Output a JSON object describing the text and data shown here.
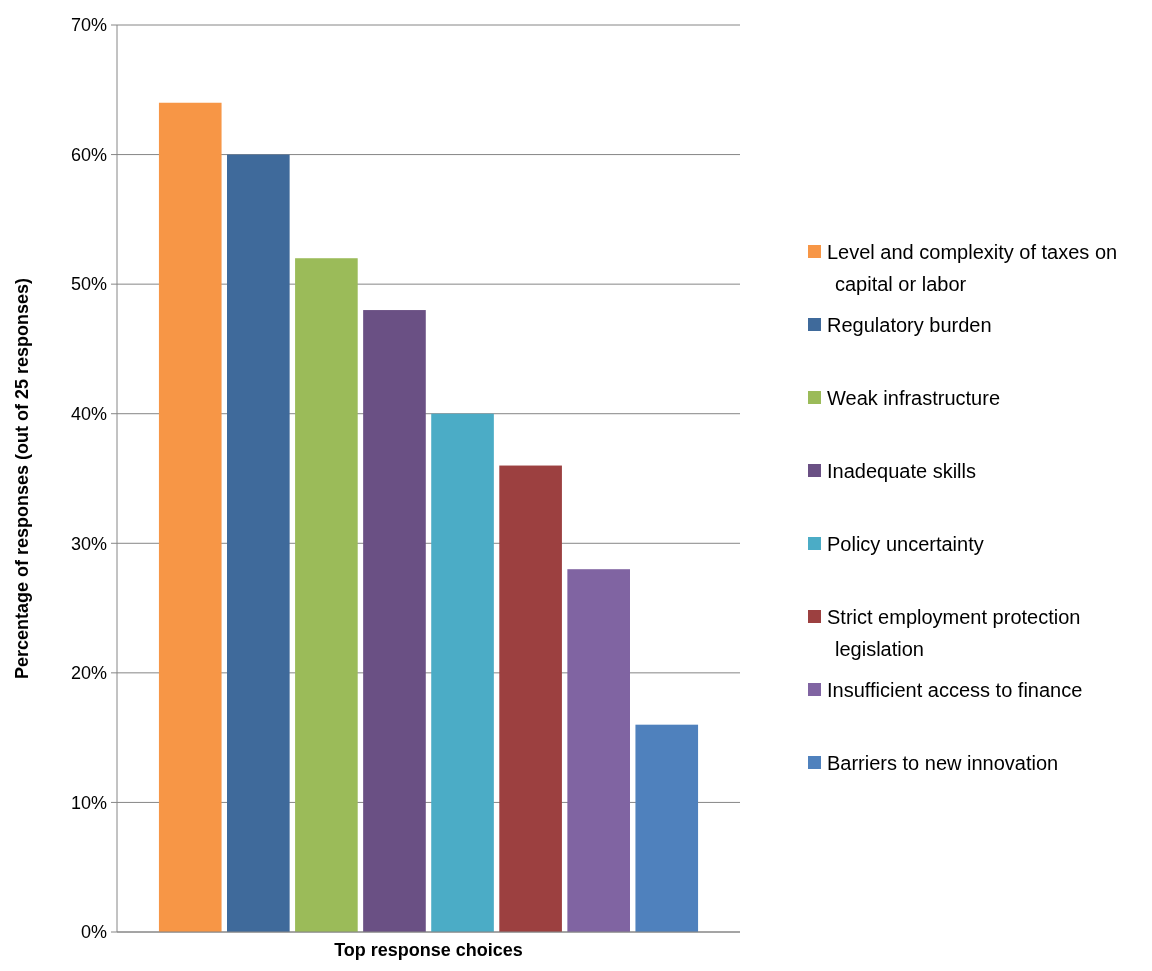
{
  "chart_data": {
    "type": "bar",
    "xlabel": "Top response choices",
    "ylabel": "Percentage of responses (out of 25 responses)",
    "categories": [
      null
    ],
    "series": [
      {
        "name": "Level and complexity of taxes on capital or labor",
        "color": "#f79646",
        "values": [
          64
        ]
      },
      {
        "name": "Regulatory burden",
        "color": "#3f6a9b",
        "values": [
          60
        ]
      },
      {
        "name": "Weak infrastructure",
        "color": "#9bbb59",
        "values": [
          52
        ]
      },
      {
        "name": "Inadequate skills",
        "color": "#6a5084",
        "values": [
          48
        ]
      },
      {
        "name": "Policy uncertainty",
        "color": "#4bacc6",
        "values": [
          40
        ]
      },
      {
        "name": "Strict employment protection legislation",
        "color": "#9c4040",
        "values": [
          36
        ]
      },
      {
        "name": "Insufficient access to finance",
        "color": "#8064a2",
        "values": [
          28
        ]
      },
      {
        "name": "Barriers to new innovation",
        "color": "#4f81bd",
        "values": [
          16
        ]
      }
    ],
    "ylim": [
      0,
      70
    ],
    "yticks": [
      {
        "value": 0,
        "label": "0%"
      },
      {
        "value": 10,
        "label": "10%"
      },
      {
        "value": 20,
        "label": "20%"
      },
      {
        "value": 30,
        "label": "30%"
      },
      {
        "value": 40,
        "label": "40%"
      },
      {
        "value": 50,
        "label": "50%"
      },
      {
        "value": 60,
        "label": "60%"
      },
      {
        "value": 70,
        "label": "70%"
      }
    ],
    "grid": "y",
    "legend": "right"
  }
}
